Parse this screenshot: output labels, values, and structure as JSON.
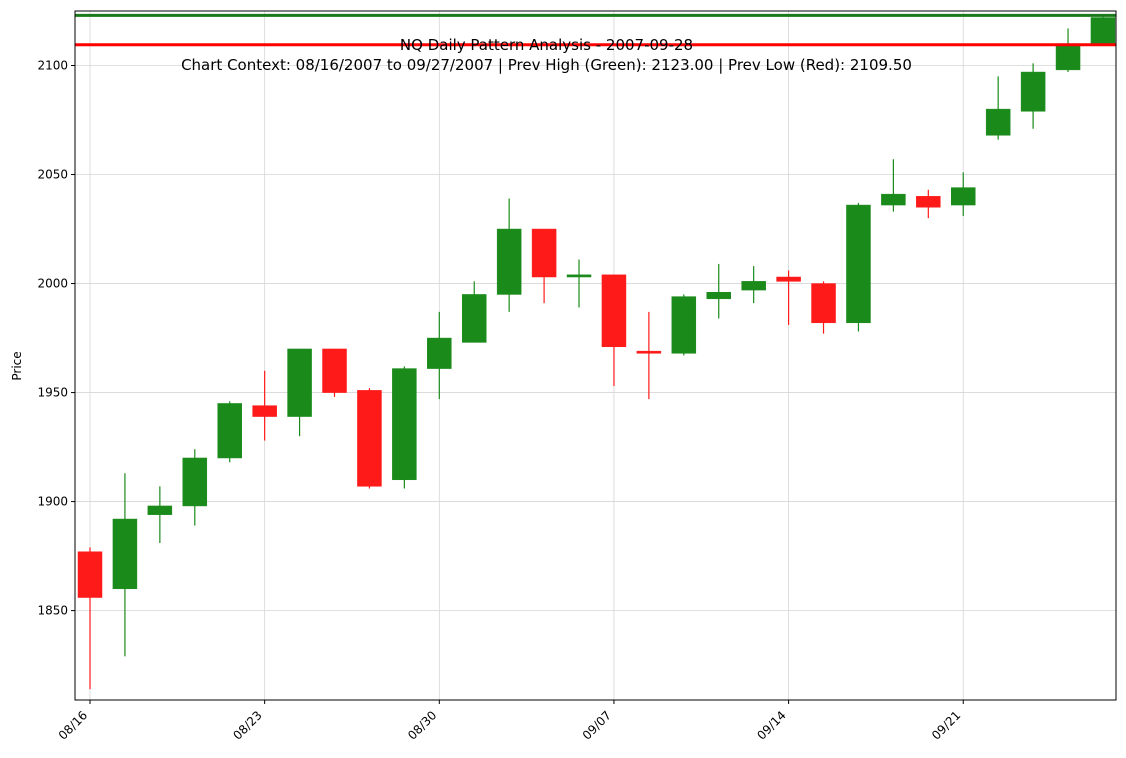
{
  "chart_data": {
    "type": "candlestick",
    "title": "NQ Daily Pattern Analysis - 2007-09-28",
    "subtitle": "Chart Context: 08/16/2007 to 09/27/2007 | Prev High (Green): 2123.00 | Prev Low (Red): 2109.50",
    "ylabel": "Price",
    "xlabel": "",
    "ylim": [
      1809,
      2125
    ],
    "grid": true,
    "yticks": [
      1850,
      1900,
      1950,
      2000,
      2050,
      2100
    ],
    "xticks": [
      {
        "date": "2007-08-16",
        "label": "08/16"
      },
      {
        "date": "2007-08-23",
        "label": "08/23"
      },
      {
        "date": "2007-08-30",
        "label": "08/30"
      },
      {
        "date": "2007-09-07",
        "label": "09/07"
      },
      {
        "date": "2007-09-14",
        "label": "09/14"
      },
      {
        "date": "2007-09-21",
        "label": "09/21"
      }
    ],
    "reference_lines": [
      {
        "label": "Prev High",
        "value": 2123.0,
        "color": "#1a7a1a"
      },
      {
        "label": "Prev Low",
        "value": 2109.5,
        "color": "#ff0000"
      }
    ],
    "colors": {
      "up": "#1a8a1a",
      "down": "#ff1a1a"
    },
    "candles": [
      {
        "date": "2007-08-16",
        "open": 1877,
        "high": 1879,
        "low": 1814,
        "close": 1856
      },
      {
        "date": "2007-08-17",
        "open": 1860,
        "high": 1913,
        "low": 1829,
        "close": 1892
      },
      {
        "date": "2007-08-20",
        "open": 1894,
        "high": 1907,
        "low": 1881,
        "close": 1898
      },
      {
        "date": "2007-08-21",
        "open": 1898,
        "high": 1924,
        "low": 1889,
        "close": 1920
      },
      {
        "date": "2007-08-22",
        "open": 1920,
        "high": 1946,
        "low": 1918,
        "close": 1945
      },
      {
        "date": "2007-08-23",
        "open": 1944,
        "high": 1960,
        "low": 1928,
        "close": 1939
      },
      {
        "date": "2007-08-24",
        "open": 1939,
        "high": 1970,
        "low": 1930,
        "close": 1970
      },
      {
        "date": "2007-08-27",
        "open": 1970,
        "high": 1970,
        "low": 1948,
        "close": 1950
      },
      {
        "date": "2007-08-28",
        "open": 1951,
        "high": 1952,
        "low": 1906,
        "close": 1907
      },
      {
        "date": "2007-08-29",
        "open": 1910,
        "high": 1962,
        "low": 1906,
        "close": 1961
      },
      {
        "date": "2007-08-30",
        "open": 1961,
        "high": 1987,
        "low": 1947,
        "close": 1975
      },
      {
        "date": "2007-08-31",
        "open": 1973,
        "high": 2001,
        "low": 1973,
        "close": 1995
      },
      {
        "date": "2007-09-04",
        "open": 1995,
        "high": 2039,
        "low": 1987,
        "close": 2025
      },
      {
        "date": "2007-09-05",
        "open": 2025,
        "high": 2025,
        "low": 1991,
        "close": 2003
      },
      {
        "date": "2007-09-06",
        "open": 2003,
        "high": 2011,
        "low": 1989,
        "close": 2004
      },
      {
        "date": "2007-09-07",
        "open": 2004,
        "high": 2004,
        "low": 1953,
        "close": 1971
      },
      {
        "date": "2007-09-10",
        "open": 1969,
        "high": 1987,
        "low": 1947,
        "close": 1968
      },
      {
        "date": "2007-09-11",
        "open": 1968,
        "high": 1995,
        "low": 1967,
        "close": 1994
      },
      {
        "date": "2007-09-12",
        "open": 1993,
        "high": 2009,
        "low": 1984,
        "close": 1996
      },
      {
        "date": "2007-09-13",
        "open": 1997,
        "high": 2008,
        "low": 1991,
        "close": 2001
      },
      {
        "date": "2007-09-14",
        "open": 2003,
        "high": 2006,
        "low": 1981,
        "close": 2001
      },
      {
        "date": "2007-09-17",
        "open": 2000,
        "high": 2001,
        "low": 1977,
        "close": 1982
      },
      {
        "date": "2007-09-18",
        "open": 1982,
        "high": 2037,
        "low": 1978,
        "close": 2036
      },
      {
        "date": "2007-09-19",
        "open": 2036,
        "high": 2057,
        "low": 2033,
        "close": 2041
      },
      {
        "date": "2007-09-20",
        "open": 2040,
        "high": 2043,
        "low": 2030,
        "close": 2035
      },
      {
        "date": "2007-09-21",
        "open": 2036,
        "high": 2051,
        "low": 2031,
        "close": 2044
      },
      {
        "date": "2007-09-24",
        "open": 2068,
        "high": 2095,
        "low": 2066,
        "close": 2080
      },
      {
        "date": "2007-09-25",
        "open": 2079,
        "high": 2101,
        "low": 2071,
        "close": 2097
      },
      {
        "date": "2007-09-26",
        "open": 2098,
        "high": 2117,
        "low": 2097,
        "close": 2110
      },
      {
        "date": "2007-09-27",
        "open": 2110,
        "high": 2123,
        "low": 2109,
        "close": 2122
      }
    ]
  }
}
